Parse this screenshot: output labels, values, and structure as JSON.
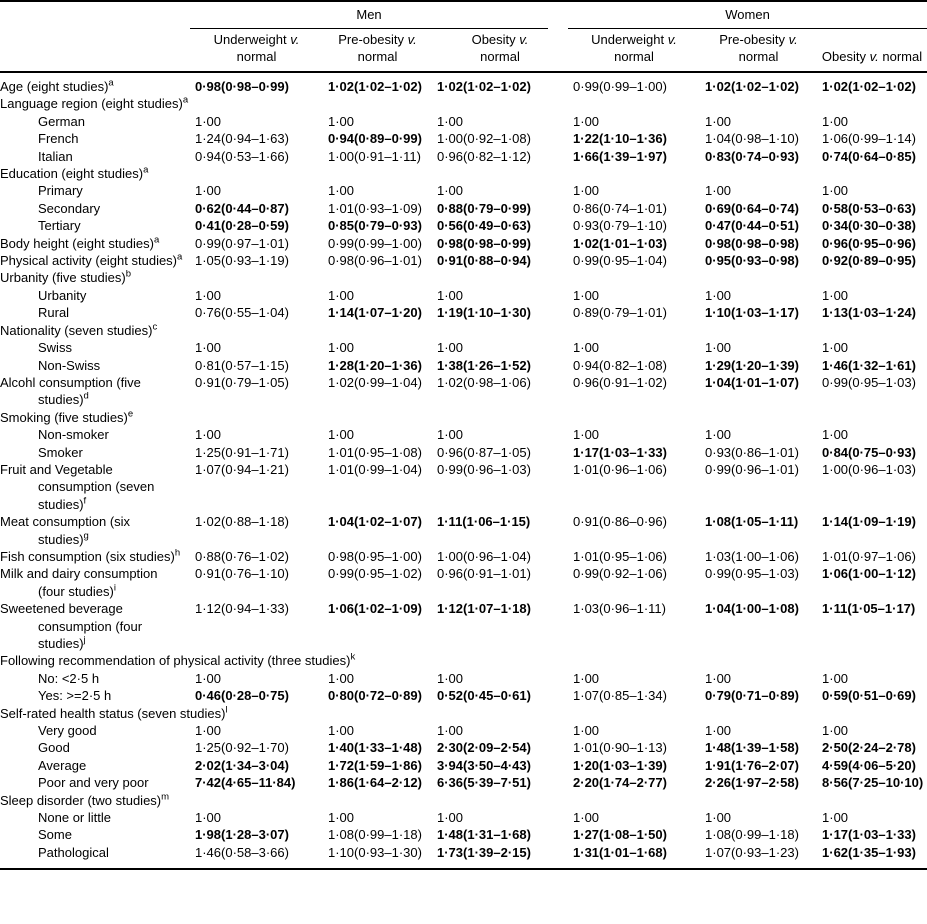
{
  "table": {
    "group_headers": [
      {
        "label": "Men",
        "span": 3
      },
      {
        "label": "Women",
        "span": 3
      }
    ],
    "column_headers": [
      [
        "Underweight v.",
        "normal"
      ],
      [
        "Pre-obesity v.",
        "normal"
      ],
      [
        "Obesity v.",
        "normal"
      ],
      [
        "Underweight v.",
        "normal"
      ],
      [
        "Pre-obesity v.",
        "normal"
      ],
      [
        "Obesity v. normal"
      ]
    ],
    "rows": [
      {
        "label": "Age (eight studies)",
        "sup": "a",
        "indent": 0,
        "values": [
          "0·98(0·98–0·99)",
          "1·02(1·02–1·02)",
          "1·02(1·02–1·02)",
          "0·99(0·99–1·00)",
          "1·02(1·02–1·02)",
          "1·02(1·02–1·02)"
        ],
        "bold": [
          1,
          1,
          1,
          0,
          1,
          1
        ]
      },
      {
        "label": "Language region (eight studies)",
        "sup": "a",
        "indent": 0,
        "values": null
      },
      {
        "label": "German",
        "indent": 1,
        "values": [
          "1·00",
          "1·00",
          "1·00",
          "1·00",
          "1·00",
          "1·00"
        ],
        "bold": [
          0,
          0,
          0,
          0,
          0,
          0
        ]
      },
      {
        "label": "French",
        "indent": 1,
        "values": [
          "1·24(0·94–1·63)",
          "0·94(0·89–0·99)",
          "1·00(0·92–1·08)",
          "1·22(1·10–1·36)",
          "1·04(0·98–1·10)",
          "1·06(0·99–1·14)"
        ],
        "bold": [
          0,
          1,
          0,
          1,
          0,
          0
        ]
      },
      {
        "label": "Italian",
        "indent": 1,
        "values": [
          "0·94(0·53–1·66)",
          "1·00(0·91–1·11)",
          "0·96(0·82–1·12)",
          "1·66(1·39–1·97)",
          "0·83(0·74–0·93)",
          "0·74(0·64–0·85)"
        ],
        "bold": [
          0,
          0,
          0,
          1,
          1,
          1
        ]
      },
      {
        "label": "Education (eight studies)",
        "sup": "a",
        "indent": 0,
        "values": null
      },
      {
        "label": "Primary",
        "indent": 1,
        "values": [
          "1·00",
          "1·00",
          "1·00",
          "1·00",
          "1·00",
          "1·00"
        ],
        "bold": [
          0,
          0,
          0,
          0,
          0,
          0
        ]
      },
      {
        "label": "Secondary",
        "indent": 1,
        "values": [
          "0·62(0·44–0·87)",
          "1·01(0·93–1·09)",
          "0·88(0·79–0·99)",
          "0·86(0·74–1·01)",
          "0·69(0·64–0·74)",
          "0·58(0·53–0·63)"
        ],
        "bold": [
          1,
          0,
          1,
          0,
          1,
          1
        ]
      },
      {
        "label": "Tertiary",
        "indent": 1,
        "values": [
          "0·41(0·28–0·59)",
          "0·85(0·79–0·93)",
          "0·56(0·49–0·63)",
          "0·93(0·79–1·10)",
          "0·47(0·44–0·51)",
          "0·34(0·30–0·38)"
        ],
        "bold": [
          1,
          1,
          1,
          0,
          1,
          1
        ]
      },
      {
        "label": "Body height (eight studies)",
        "sup": "a",
        "indent": 0,
        "values": [
          "0·99(0·97–1·01)",
          "0·99(0·99–1·00)",
          "0·98(0·98–0·99)",
          "1·02(1·01–1·03)",
          "0·98(0·98–0·98)",
          "0·96(0·95–0·96)"
        ],
        "bold": [
          0,
          0,
          1,
          1,
          1,
          1
        ]
      },
      {
        "label": "Physical activity (eight studies)",
        "sup": "a",
        "indent": 0,
        "values": [
          "1·05(0·93–1·19)",
          "0·98(0·96–1·01)",
          "0·91(0·88–0·94)",
          "0·99(0·95–1·04)",
          "0·95(0·93–0·98)",
          "0·92(0·89–0·95)"
        ],
        "bold": [
          0,
          0,
          1,
          0,
          1,
          1
        ]
      },
      {
        "label": "Urbanity (five studies)",
        "sup": "b",
        "indent": 0,
        "values": null
      },
      {
        "label": "Urbanity",
        "indent": 1,
        "values": [
          "1·00",
          "1·00",
          "1·00",
          "1·00",
          "1·00",
          "1·00"
        ],
        "bold": [
          0,
          0,
          0,
          0,
          0,
          0
        ]
      },
      {
        "label": "Rural",
        "indent": 1,
        "values": [
          "0·76(0·55–1·04)",
          "1·14(1·07–1·20)",
          "1·19(1·10–1·30)",
          "0·89(0·79–1·01)",
          "1·10(1·03–1·17)",
          "1·13(1·03–1·24)"
        ],
        "bold": [
          0,
          1,
          1,
          0,
          1,
          1
        ]
      },
      {
        "label": "Nationality (seven studies)",
        "sup": "c",
        "indent": 0,
        "values": null
      },
      {
        "label": "Swiss",
        "indent": 1,
        "values": [
          "1·00",
          "1·00",
          "1·00",
          "1·00",
          "1·00",
          "1·00"
        ],
        "bold": [
          0,
          0,
          0,
          0,
          0,
          0
        ]
      },
      {
        "label": "Non-Swiss",
        "indent": 1,
        "values": [
          "0·81(0·57–1·15)",
          "1·28(1·20–1·36)",
          "1·38(1·26–1·52)",
          "0·94(0·82–1·08)",
          "1·29(1·20–1·39)",
          "1·46(1·32–1·61)"
        ],
        "bold": [
          0,
          1,
          1,
          0,
          1,
          1
        ]
      },
      {
        "label": "Alcohl consumption (five studies)",
        "sup": "d",
        "indent": 0,
        "values": [
          "0·91(0·79–1·05)",
          "1·02(0·99–1·04)",
          "1·02(0·98–1·06)",
          "0·96(0·91–1·02)",
          "1·04(1·01–1·07)",
          "0·99(0·95–1·03)"
        ],
        "bold": [
          0,
          0,
          0,
          0,
          1,
          0
        ]
      },
      {
        "label": "Smoking (five studies)",
        "sup": "e",
        "indent": 0,
        "values": null
      },
      {
        "label": "Non-smoker",
        "indent": 1,
        "values": [
          "1·00",
          "1·00",
          "1·00",
          "1·00",
          "1·00",
          "1·00"
        ],
        "bold": [
          0,
          0,
          0,
          0,
          0,
          0
        ]
      },
      {
        "label": "Smoker",
        "indent": 1,
        "values": [
          "1·25(0·91–1·71)",
          "1·01(0·95–1·08)",
          "0·96(0·87–1·05)",
          "1·17(1·03–1·33)",
          "0·93(0·86–1·01)",
          "0·84(0·75–0·93)"
        ],
        "bold": [
          0,
          0,
          0,
          1,
          0,
          1
        ]
      },
      {
        "label": "Fruit and Vegetable consumption (seven studies)",
        "sup": "f",
        "indent": 0,
        "values": [
          "1·07(0·94–1·21)",
          "1·01(0·99–1·04)",
          "0·99(0·96–1·03)",
          "1·01(0·96–1·06)",
          "0·99(0·96–1·01)",
          "1·00(0·96–1·03)"
        ],
        "bold": [
          0,
          0,
          0,
          0,
          0,
          0
        ]
      },
      {
        "label": "Meat consumption (six studies)",
        "sup": "g",
        "indent": 0,
        "values": [
          "1·02(0·88–1·18)",
          "1·04(1·02–1·07)",
          "1·11(1·06–1·15)",
          "0·91(0·86–0·96)",
          "1·08(1·05–1·11)",
          "1·14(1·09–1·19)"
        ],
        "bold": [
          0,
          1,
          1,
          0,
          1,
          1
        ]
      },
      {
        "label": "Fish consumption (six studies)",
        "sup": "h",
        "indent": 0,
        "values": [
          "0·88(0·76–1·02)",
          "0·98(0·95–1·00)",
          "1·00(0·96–1·04)",
          "1·01(0·95–1·06)",
          "1·03(1·00–1·06)",
          "1·01(0·97–1·06)"
        ],
        "bold": [
          0,
          0,
          0,
          0,
          0,
          0
        ]
      },
      {
        "label": "Milk and dairy consumption (four studies)",
        "sup": "i",
        "indent": 0,
        "values": [
          "0·91(0·76–1·10)",
          "0·99(0·95–1·02)",
          "0·96(0·91–1·01)",
          "0·99(0·92–1·06)",
          "0·99(0·95–1·03)",
          "1·06(1·00–1·12)"
        ],
        "bold": [
          0,
          0,
          0,
          0,
          0,
          1
        ]
      },
      {
        "label": "Sweetened beverage consumption (four studies)",
        "sup": "j",
        "indent": 0,
        "values": [
          "1·12(0·94–1·33)",
          "1·06(1·02–1·09)",
          "1·12(1·07–1·18)",
          "1·03(0·96–1·11)",
          "1·04(1·00–1·08)",
          "1·11(1·05–1·17)"
        ],
        "bold": [
          0,
          1,
          1,
          0,
          1,
          1
        ]
      },
      {
        "label": "Following recommendation of physical activity (three studies)",
        "sup": "k",
        "indent": 0,
        "values": null
      },
      {
        "label": "No: <2·5 h",
        "indent": 1,
        "values": [
          "1·00",
          "1·00",
          "1·00",
          "1·00",
          "1·00",
          "1·00"
        ],
        "bold": [
          0,
          0,
          0,
          0,
          0,
          0
        ]
      },
      {
        "label": "Yes: >=2·5 h",
        "indent": 1,
        "values": [
          "0·46(0·28–0·75)",
          "0·80(0·72–0·89)",
          "0·52(0·45–0·61)",
          "1·07(0·85–1·34)",
          "0·79(0·71–0·89)",
          "0·59(0·51–0·69)"
        ],
        "bold": [
          1,
          1,
          1,
          0,
          1,
          1
        ]
      },
      {
        "label": "Self-rated health status (seven studies)",
        "sup": "l",
        "indent": 0,
        "values": null
      },
      {
        "label": "Very good",
        "indent": 1,
        "values": [
          "1·00",
          "1·00",
          "1·00",
          "1·00",
          "1·00",
          "1·00"
        ],
        "bold": [
          0,
          0,
          0,
          0,
          0,
          0
        ]
      },
      {
        "label": "Good",
        "indent": 1,
        "values": [
          "1·25(0·92–1·70)",
          "1·40(1·33–1·48)",
          "2·30(2·09–2·54)",
          "1·01(0·90–1·13)",
          "1·48(1·39–1·58)",
          "2·50(2·24–2·78)"
        ],
        "bold": [
          0,
          1,
          1,
          0,
          1,
          1
        ]
      },
      {
        "label": "Average",
        "indent": 1,
        "values": [
          "2·02(1·34–3·04)",
          "1·72(1·59–1·86)",
          "3·94(3·50–4·43)",
          "1·20(1·03–1·39)",
          "1·91(1·76–2·07)",
          "4·59(4·06–5·20)"
        ],
        "bold": [
          1,
          1,
          1,
          1,
          1,
          1
        ]
      },
      {
        "label": "Poor and very poor",
        "indent": 1,
        "values": [
          "7·42(4·65–11·84)",
          "1·86(1·64–2·12)",
          "6·36(5·39–7·51)",
          "2·20(1·74–2·77)",
          "2·26(1·97–2·58)",
          "8·56(7·25–10·10)"
        ],
        "bold": [
          1,
          1,
          1,
          1,
          1,
          1
        ]
      },
      {
        "label": "Sleep disorder (two studies)",
        "sup": "m",
        "indent": 0,
        "values": null
      },
      {
        "label": "None or little",
        "indent": 1,
        "values": [
          "1·00",
          "1·00",
          "1·00",
          "1·00",
          "1·00",
          "1·00"
        ],
        "bold": [
          0,
          0,
          0,
          0,
          0,
          0
        ]
      },
      {
        "label": "Some",
        "indent": 1,
        "values": [
          "1·98(1·28–3·07)",
          "1·08(0·99–1·18)",
          "1·48(1·31–1·68)",
          "1·27(1·08–1·50)",
          "1·08(0·99–1·18)",
          "1·17(1·03–1·33)"
        ],
        "bold": [
          1,
          0,
          1,
          1,
          0,
          1
        ]
      },
      {
        "label": "Pathological",
        "indent": 1,
        "values": [
          "1·46(0·58–3·66)",
          "1·10(0·93–1·30)",
          "1·73(1·39–2·15)",
          "1·31(1·01–1·68)",
          "1·07(0·93–1·23)",
          "1·62(1·35–1·93)"
        ],
        "bold": [
          0,
          0,
          1,
          1,
          0,
          1
        ]
      }
    ]
  }
}
